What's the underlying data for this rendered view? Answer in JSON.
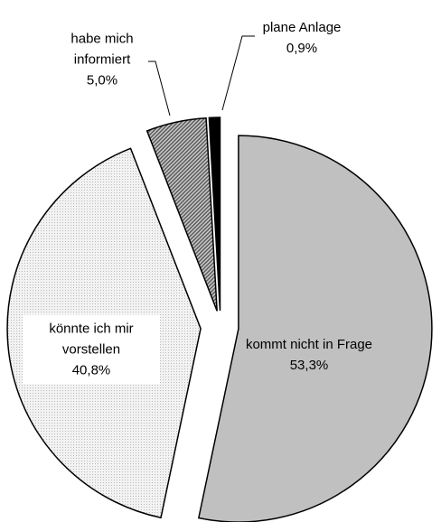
{
  "chart_data": {
    "type": "pie",
    "categories": [
      "kommt nicht in Frage",
      "könnte ich mir vorstellen",
      "habe mich informiert",
      "plane Anlage"
    ],
    "values": [
      53.3,
      40.8,
      5.0,
      0.9
    ],
    "value_labels": [
      "53,3%",
      "40,8%",
      "5,0%",
      "0,9%"
    ],
    "colors": [
      "#c0c0c0",
      "#ececec",
      "#8a8a8a",
      "#000000"
    ]
  }
}
